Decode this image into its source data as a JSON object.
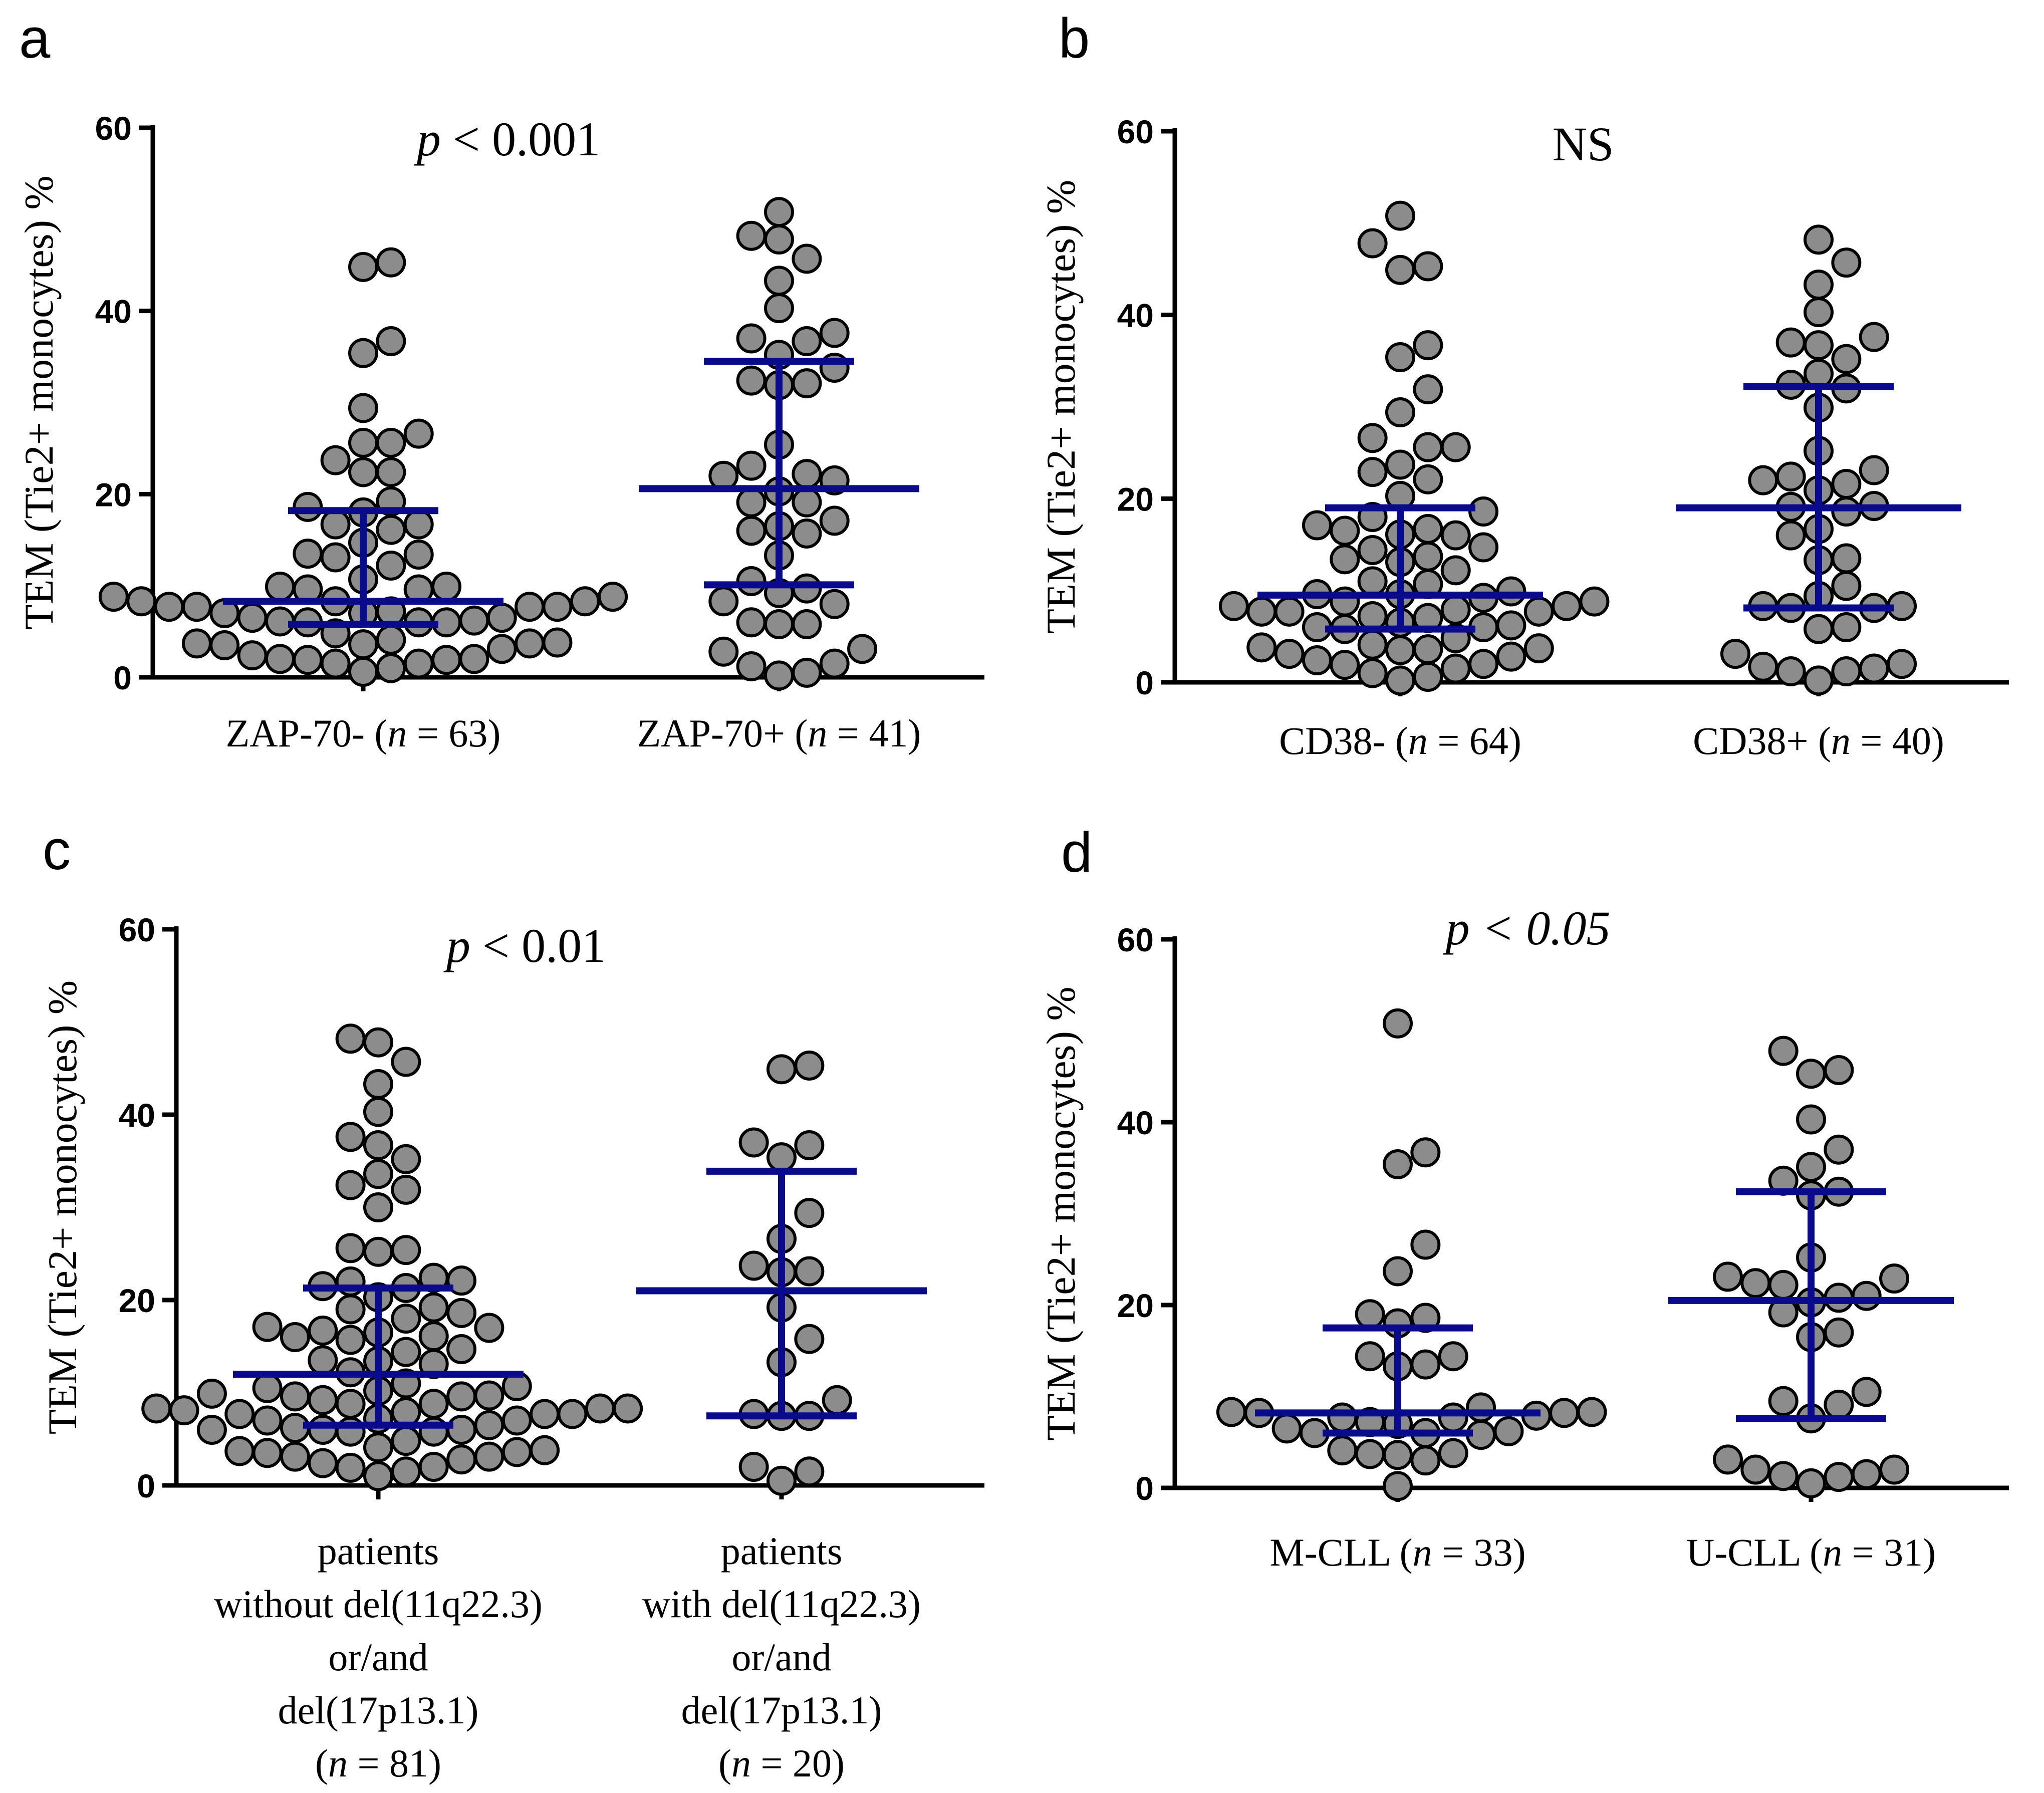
{
  "figure": {
    "series_color": "#0a0a8c",
    "dot_color": "#8c8c8c"
  },
  "chart_data": [
    {
      "type": "scatter",
      "panel": "a",
      "annotation": {
        "p_symbol": "p",
        "rest": " < 0.001"
      },
      "ylabel": "TEM (Tie2+ monocytes) %",
      "ylim": [
        0,
        60
      ],
      "yticks": [
        "0",
        "20",
        "40",
        "60"
      ],
      "categories": [
        {
          "lines": [
            [
              {
                "t": "ZAP-70- ("
              },
              {
                "t": "n",
                "i": true
              },
              {
                "t": " = 63)"
              }
            ]
          ],
          "n": 63,
          "median": 8.3,
          "q1": 5.8,
          "q3": 18.2
        },
        {
          "lines": [
            [
              {
                "t": "ZAP-70+ ("
              },
              {
                "t": "n",
                "i": true
              },
              {
                "t": " = 41)"
              }
            ]
          ],
          "n": 41,
          "median": 20.6,
          "q1": 10.1,
          "q3": 34.5
        }
      ],
      "series": [
        {
          "name": "ZAP-70-",
          "values": [
            45.3,
            44.8,
            36.7,
            35.4,
            29.4,
            26.6,
            25.6,
            25.6,
            23.7,
            22.4,
            22.4,
            19.2,
            18.6,
            18.0,
            16.7,
            16.7,
            16.1,
            14.7,
            13.5,
            13.4,
            13.1,
            12.2,
            10.7,
            9.9,
            9.9,
            9.6,
            9.6,
            8.8,
            8.8,
            8.3,
            8.3,
            8.3,
            7.7,
            7.7,
            7.7,
            7.7,
            7.2,
            7.0,
            7.0,
            6.5,
            6.5,
            6.2,
            6.1,
            6.0,
            6.0,
            6.0,
            4.8,
            4.1,
            3.8,
            3.7,
            3.7,
            3.6,
            3.5,
            3.1,
            2.4,
            2.0,
            2.0,
            1.9,
            1.9,
            1.5,
            1.5,
            1.0,
            0.6
          ]
        },
        {
          "name": "ZAP-70+",
          "values": [
            50.8,
            48.2,
            47.8,
            45.7,
            43.3,
            40.3,
            37.6,
            37.0,
            36.7,
            35.2,
            33.8,
            32.4,
            32.1,
            31.9,
            25.4,
            23.1,
            22.2,
            22.0,
            21.5,
            20.3,
            19.1,
            19.1,
            17.1,
            16.5,
            16.0,
            15.7,
            13.3,
            10.5,
            9.7,
            9.2,
            8.3,
            8.0,
            6.0,
            5.8,
            5.8,
            3.1,
            2.8,
            1.5,
            1.2,
            0.5,
            0.2
          ]
        }
      ]
    },
    {
      "type": "scatter",
      "panel": "b",
      "annotation": {
        "p_symbol": "",
        "rest": "NS"
      },
      "ylabel": "TEM (Tie2+ monocytes) %",
      "ylim": [
        0,
        60
      ],
      "yticks": [
        "0",
        "20",
        "40",
        "60"
      ],
      "categories": [
        {
          "lines": [
            [
              {
                "t": "CD38- ("
              },
              {
                "t": "n",
                "i": true
              },
              {
                "t": " = 64)"
              }
            ]
          ],
          "n": 64,
          "median": 9.5,
          "q1": 5.8,
          "q3": 19.0
        },
        {
          "lines": [
            [
              {
                "t": "CD38+ ("
              },
              {
                "t": "n",
                "i": true
              },
              {
                "t": " = 40)"
              }
            ]
          ],
          "n": 40,
          "median": 19.0,
          "q1": 8.1,
          "q3": 32.2
        }
      ],
      "series": [
        {
          "name": "CD38-",
          "values": [
            50.8,
            47.8,
            45.3,
            44.9,
            36.7,
            35.4,
            31.9,
            29.4,
            26.6,
            25.6,
            25.6,
            23.7,
            22.9,
            22.1,
            20.3,
            18.6,
            18.0,
            17.1,
            16.7,
            16.5,
            16.1,
            16.0,
            14.7,
            14.4,
            13.7,
            13.4,
            13.1,
            12.2,
            11.0,
            10.7,
            9.9,
            9.6,
            9.6,
            9.2,
            8.8,
            8.8,
            8.3,
            8.3,
            7.9,
            7.7,
            7.7,
            7.7,
            7.2,
            7.0,
            6.5,
            6.2,
            6.0,
            6.0,
            5.8,
            4.8,
            4.1,
            3.8,
            3.7,
            3.6,
            3.5,
            3.1,
            2.8,
            2.4,
            2.0,
            1.9,
            1.5,
            1.0,
            0.6,
            0.2
          ]
        },
        {
          "name": "CD38+",
          "values": [
            48.2,
            45.7,
            43.3,
            40.3,
            37.6,
            37.0,
            36.7,
            35.2,
            33.6,
            32.4,
            32.0,
            29.9,
            25.2,
            23.1,
            22.4,
            22.0,
            21.6,
            20.9,
            19.2,
            19.1,
            18.6,
            16.7,
            16.0,
            13.5,
            13.3,
            10.5,
            9.4,
            8.3,
            8.3,
            8.1,
            8.1,
            6.0,
            5.8,
            3.1,
            2.0,
            1.7,
            1.5,
            1.2,
            1.2,
            0.2
          ]
        }
      ]
    },
    {
      "type": "scatter",
      "panel": "c",
      "annotation": {
        "p_symbol": "p",
        "rest": " < 0.01"
      },
      "ylabel": "TEM (Tie2+ monocytes) %",
      "ylim": [
        0,
        60
      ],
      "yticks": [
        "0",
        "20",
        "40",
        "60"
      ],
      "categories": [
        {
          "lines": [
            [
              {
                "t": "patients"
              }
            ],
            [
              {
                "t": "without del(11q22.3)"
              }
            ],
            [
              {
                "t": "or/and"
              }
            ],
            [
              {
                "t": "del(17p13.1)"
              }
            ],
            [
              {
                "t": "("
              },
              {
                "t": "n",
                "i": true
              },
              {
                "t": " = 81)"
              }
            ]
          ],
          "n": 81,
          "median": 12.0,
          "q1": 6.5,
          "q3": 21.3
        },
        {
          "lines": [
            [
              {
                "t": "patients"
              }
            ],
            [
              {
                "t": "with del(11q22.3)"
              }
            ],
            [
              {
                "t": "or/and"
              }
            ],
            [
              {
                "t": "del(17p13.1)"
              }
            ],
            [
              {
                "t": "("
              },
              {
                "t": "n",
                "i": true
              },
              {
                "t": " = 20)"
              }
            ]
          ],
          "n": 20,
          "median": 21.0,
          "q1": 7.5,
          "q3": 33.9
        }
      ],
      "series": [
        {
          "name": "without del",
          "values": [
            48.2,
            47.8,
            45.7,
            43.3,
            40.3,
            37.6,
            36.7,
            35.2,
            33.6,
            32.4,
            31.9,
            30.0,
            25.6,
            25.4,
            25.2,
            22.4,
            22.1,
            22.0,
            21.5,
            21.3,
            20.3,
            19.2,
            19.0,
            18.6,
            18.0,
            17.1,
            17.0,
            16.7,
            16.5,
            16.1,
            16.0,
            15.7,
            14.7,
            14.4,
            13.5,
            13.4,
            13.1,
            12.2,
            11.0,
            10.7,
            10.5,
            10.2,
            9.9,
            9.7,
            9.6,
            9.6,
            9.2,
            8.8,
            8.8,
            8.3,
            8.3,
            8.3,
            8.1,
            7.9,
            7.7,
            7.7,
            7.7,
            7.2,
            7.0,
            7.0,
            6.5,
            6.2,
            6.0,
            6.0,
            6.0,
            5.8,
            5.8,
            4.8,
            4.1,
            3.8,
            3.7,
            3.6,
            3.5,
            3.1,
            3.1,
            2.8,
            2.4,
            2.0,
            1.9,
            1.5,
            1.0
          ]
        },
        {
          "name": "with del",
          "values": [
            45.3,
            44.9,
            37.0,
            36.7,
            35.4,
            29.4,
            26.6,
            23.7,
            23.1,
            23.0,
            19.2,
            15.8,
            13.3,
            9.2,
            7.7,
            7.5,
            7.5,
            2.0,
            1.5,
            0.5
          ]
        }
      ]
    },
    {
      "type": "scatter",
      "panel": "d",
      "annotation": {
        "p_symbol": "p",
        "rest": " < 0.05",
        "all_italic": true
      },
      "ylabel": "TEM (Tie2+ monocytes) %",
      "ylim": [
        0,
        60
      ],
      "yticks": [
        "0",
        "20",
        "40",
        "60"
      ],
      "categories": [
        {
          "lines": [
            [
              {
                "t": "M-CLL ("
              },
              {
                "t": "n",
                "i": true
              },
              {
                "t": " = 33)"
              }
            ]
          ],
          "n": 33,
          "median": 8.2,
          "q1": 6.0,
          "q3": 17.5
        },
        {
          "lines": [
            [
              {
                "t": "U-CLL ("
              },
              {
                "t": "n",
                "i": true
              },
              {
                "t": " = 31)"
              }
            ]
          ],
          "n": 31,
          "median": 20.5,
          "q1": 7.6,
          "q3": 32.4
        }
      ],
      "series": [
        {
          "name": "M-CLL",
          "values": [
            50.8,
            36.7,
            35.4,
            26.6,
            23.7,
            19.0,
            18.6,
            18.0,
            14.4,
            14.4,
            13.5,
            13.3,
            8.8,
            8.3,
            8.3,
            8.2,
            8.2,
            7.9,
            7.7,
            7.7,
            7.2,
            7.0,
            6.5,
            6.2,
            6.0,
            6.0,
            5.8,
            4.1,
            3.8,
            3.7,
            3.6,
            3.0,
            0.2
          ]
        },
        {
          "name": "U-CLL",
          "values": [
            47.8,
            45.7,
            45.3,
            40.3,
            37.0,
            35.1,
            33.6,
            32.4,
            32.0,
            25.2,
            23.1,
            22.9,
            22.4,
            22.2,
            21.0,
            20.8,
            20.3,
            19.2,
            17.0,
            16.5,
            10.5,
            9.5,
            9.1,
            7.6,
            3.1,
            2.0,
            2.0,
            1.5,
            1.3,
            1.2,
            0.5
          ]
        }
      ]
    }
  ]
}
